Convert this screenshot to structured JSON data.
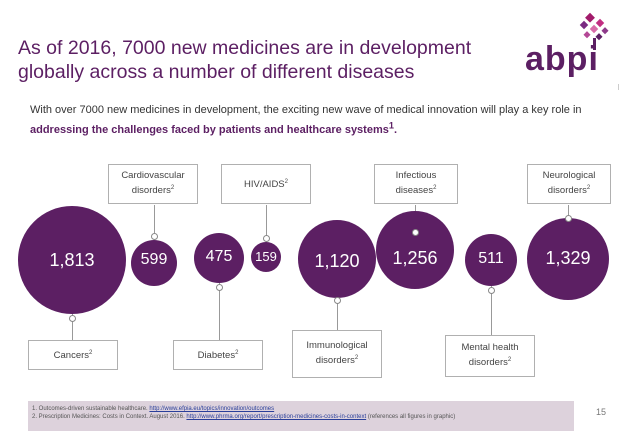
{
  "title": {
    "line1": "As of 2016, 7000 new medicines are in development",
    "line2": "globally across a number of different diseases"
  },
  "logo": {
    "text": "abpi",
    "mark": "abpi-tree-icon"
  },
  "intro": {
    "plain": "With over 7000 new medicines in development, the exciting new wave of medical innovation will play a key role in ",
    "bold": "addressing the challenges faced by patients and healthcare systems",
    "sup": "1",
    "end": "."
  },
  "categories": [
    {
      "label": "Cancers",
      "sup": "2",
      "value": "1,813"
    },
    {
      "label": "Cardiovascular disorders",
      "sup": "2",
      "value": "599"
    },
    {
      "label": "Diabetes",
      "sup": "2",
      "value": "475"
    },
    {
      "label": "HIV/AIDS",
      "sup": "2",
      "value": "159"
    },
    {
      "label": "Immunological disorders",
      "sup": "2",
      "value": "1,120"
    },
    {
      "label": "Infectious diseases",
      "sup": "2",
      "value": "1,256"
    },
    {
      "label": "Mental health disorders",
      "sup": "2",
      "value": "511"
    },
    {
      "label": "Neurological disorders",
      "sup": "2",
      "value": "1,329"
    }
  ],
  "footnotes": {
    "f1_text": "1. Outcomes-driven sustainable healthcare. ",
    "f1_link": "http://www.efpia.eu/topics/innovation/outcomes",
    "f2_text": "2. Prescription Medicines: Costs in Context. August 2016. ",
    "f2_link": "http://www.phrma.org/report/prescription-medicines-costs-in-context",
    "f2_end": " (references all figures in graphic)"
  },
  "page_number": "15",
  "colors": {
    "brand": "#5c1f63",
    "footer_bg": "#ddd2dc"
  }
}
